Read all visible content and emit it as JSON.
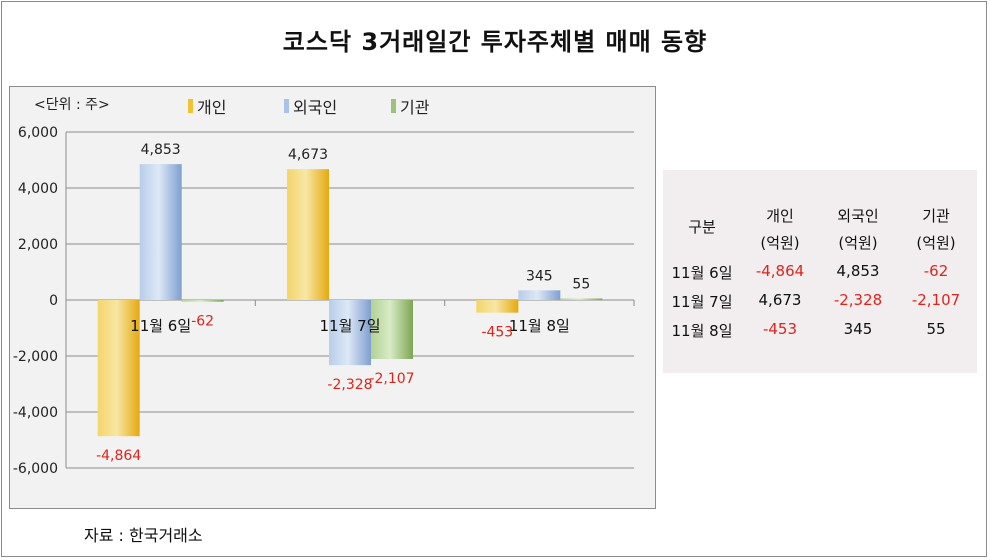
{
  "title": "코스닥 3거래일간 투자주체별 매매 동향",
  "unit_label": "<단위 : 주>",
  "source": "자료 : 한국거래소",
  "colors": {
    "individual": "#f2c230",
    "foreign": "#a9c3e6",
    "institution": "#9fc27a",
    "negative": "#e0241c",
    "background": "#f2f2f2"
  },
  "chart_data": {
    "type": "bar",
    "categories": [
      "11월 6일",
      "11월 7일",
      "11월 8일"
    ],
    "series": [
      {
        "name": "개인",
        "values": [
          -4864,
          4673,
          -453
        ]
      },
      {
        "name": "외국인",
        "values": [
          4853,
          -2328,
          345
        ]
      },
      {
        "name": "기관",
        "values": [
          -62,
          -2107,
          55
        ]
      }
    ],
    "data_labels": [
      [
        "-4,864",
        "4,673",
        "-453"
      ],
      [
        "4,853",
        "-2,328",
        "345"
      ],
      [
        "-62",
        "-2,107",
        "55"
      ]
    ],
    "y_ticks": [
      "6,000",
      "4,000",
      "2,000",
      "0",
      "-2,000",
      "-4,000",
      "-6,000"
    ],
    "ylim": [
      -6000,
      6000
    ],
    "grid": true,
    "legend_position": "top"
  },
  "table": {
    "headers": [
      {
        "line1": "구분",
        "line2": ""
      },
      {
        "line1": "개인",
        "line2": "(억원)"
      },
      {
        "line1": "외국인",
        "line2": "(억원)"
      },
      {
        "line1": "기관",
        "line2": "(억원)"
      }
    ],
    "rows": [
      {
        "label": "11월 6일",
        "values": [
          "-4,864",
          "4,853",
          "-62"
        ]
      },
      {
        "label": "11월 7일",
        "values": [
          "4,673",
          "-2,328",
          "-2,107"
        ]
      },
      {
        "label": "11월 8일",
        "values": [
          "-453",
          "345",
          "55"
        ]
      }
    ]
  }
}
